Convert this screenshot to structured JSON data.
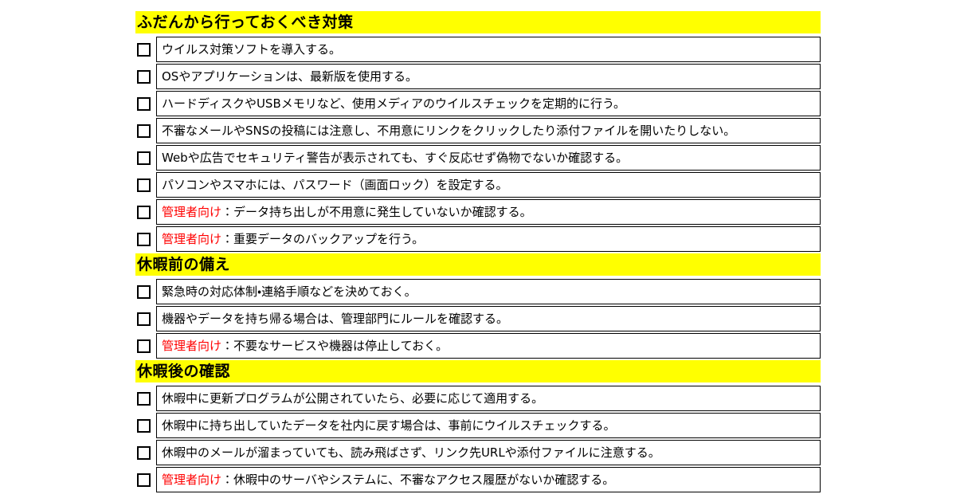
{
  "page": {
    "background_color": "#ffffff",
    "header_bg_color": "#ffff00",
    "text_color": "#000000",
    "admin_prefix_color": "#ff0000",
    "border_color": "#000000"
  },
  "sections": [
    {
      "title": "ふだんから行っておくべき対策",
      "items": [
        {
          "checked": false,
          "prefix": "",
          "text": "ウイルス対策ソフトを導入する。"
        },
        {
          "checked": false,
          "prefix": "",
          "text": "OSやアプリケーションは、最新版を使用する。"
        },
        {
          "checked": false,
          "prefix": "",
          "text": "ハードディスクやUSBメモリなど、使用メディアのウイルスチェックを定期的に行う。"
        },
        {
          "checked": false,
          "prefix": "",
          "text": "不審なメールやSNSの投稿には注意し、不用意にリンクをクリックしたり添付ファイルを開いたりしない。"
        },
        {
          "checked": false,
          "prefix": "",
          "text": "Webや広告でセキュリティ警告が表示されても、すぐ反応せず偽物でないか確認する。"
        },
        {
          "checked": false,
          "prefix": "",
          "text": "パソコンやスマホには、パスワード（画面ロック）を設定する。"
        },
        {
          "checked": false,
          "prefix": "管理者向け",
          "text": "：データ持ち出しが不用意に発生していないか確認する。"
        },
        {
          "checked": false,
          "prefix": "管理者向け",
          "text": "：重要データのバックアップを行う。"
        }
      ]
    },
    {
      "title": "休暇前の備え",
      "items": [
        {
          "checked": false,
          "prefix": "",
          "text": "緊急時の対応体制・連絡手順などを決めておく。"
        },
        {
          "checked": false,
          "prefix": "",
          "text": "機器やデータを持ち帰る場合は、管理部門にルールを確認する。"
        },
        {
          "checked": false,
          "prefix": "管理者向け",
          "text": "：不要なサービスや機器は停止しておく。"
        }
      ]
    },
    {
      "title": "休暇後の確認",
      "items": [
        {
          "checked": false,
          "prefix": "",
          "text": "休暇中に更新プログラムが公開されていたら、必要に応じて適用する。"
        },
        {
          "checked": false,
          "prefix": "",
          "text": "休暇中に持ち出していたデータを社内に戻す場合は、事前にウイルスチェックする。"
        },
        {
          "checked": false,
          "prefix": "",
          "text": "休暇中のメールが溜まっていても、読み飛ばさず、リンク先URLや添付ファイルに注意する。"
        },
        {
          "checked": false,
          "prefix": "管理者向け",
          "text": "：休暇中のサーバやシステムに、不審なアクセス履歴がないか確認する。"
        }
      ]
    }
  ]
}
